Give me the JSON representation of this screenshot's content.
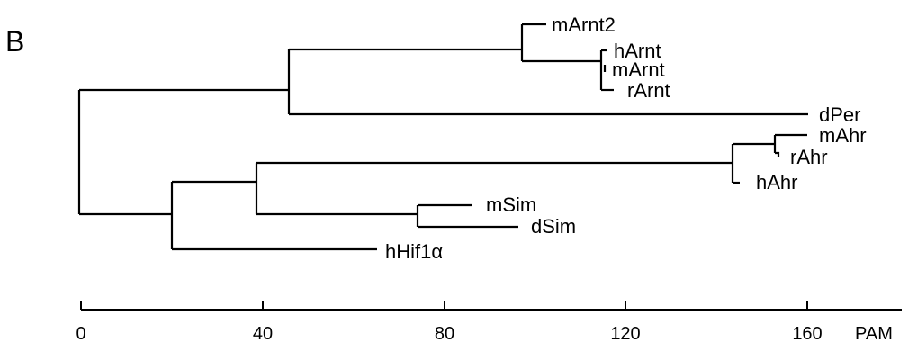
{
  "panel_label": "B",
  "leaves": [
    "mArnt2",
    "hArnt",
    "mArnt",
    "rArnt",
    "dPer",
    "mAhr",
    "rAhr",
    "hAhr",
    "mSim",
    "dSim",
    "hHif1α"
  ],
  "axis": {
    "ticks": [
      "0",
      "40",
      "80",
      "120",
      "160"
    ],
    "unit": "PAM"
  }
}
